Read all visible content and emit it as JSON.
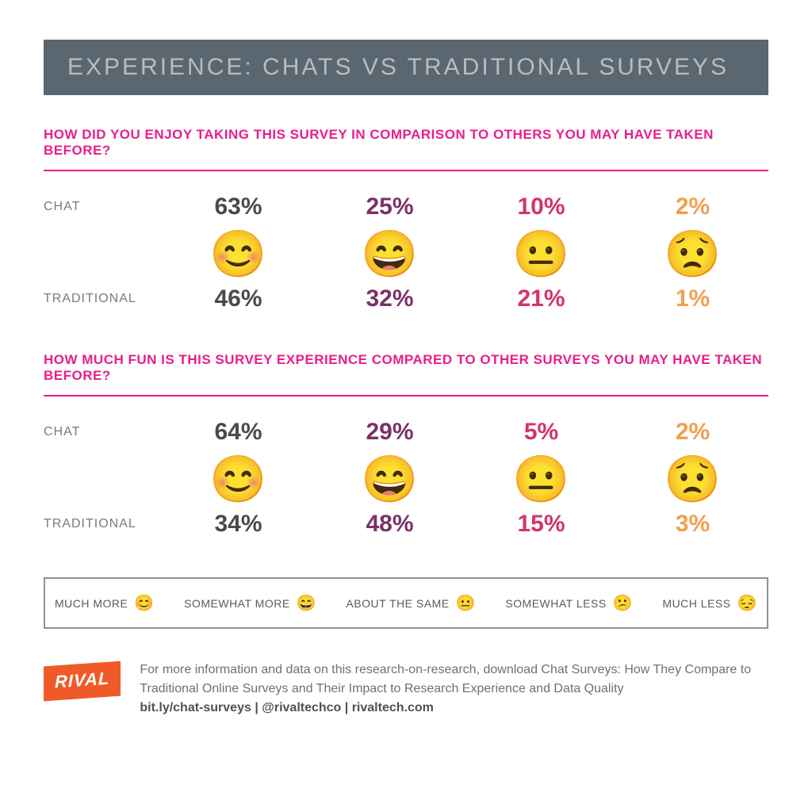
{
  "title": "EXPERIENCE: CHATS VS TRADITIONAL SURVEYS",
  "colors": {
    "title_bg": "#5a6670",
    "title_text": "#b8bcbf",
    "accent": "#e91e8c",
    "col1": "#4a4a4a",
    "col2": "#7a3068",
    "col3": "#d4336d",
    "col4": "#f0a050",
    "row_label": "#7a7a7a",
    "legend_border": "#8a9299",
    "logo_bg": "#f05a28",
    "footer_text": "#6a7278"
  },
  "typography": {
    "title_fontsize": 30,
    "question_fontsize": 17,
    "pct_fontsize": 30,
    "emoji_fontsize": 58,
    "legend_fontsize": 14,
    "footer_fontsize": 16
  },
  "row_labels": {
    "chat": "CHAT",
    "traditional": "TRADITIONAL"
  },
  "sections": [
    {
      "question": "HOW DID YOU ENJOY TAKING THIS SURVEY IN COMPARISON TO OTHERS YOU MAY HAVE TAKEN BEFORE?",
      "emojis": [
        "😊",
        "😄",
        "😐",
        "😟"
      ],
      "chat": [
        "63%",
        "25%",
        "10%",
        "2%"
      ],
      "traditional": [
        "46%",
        "32%",
        "21%",
        "1%"
      ]
    },
    {
      "question": "HOW MUCH FUN IS THIS SURVEY EXPERIENCE COMPARED TO OTHER SURVEYS YOU MAY HAVE TAKEN BEFORE?",
      "emojis": [
        "😊",
        "😄",
        "😐",
        "😟"
      ],
      "chat": [
        "64%",
        "29%",
        "5%",
        "2%"
      ],
      "traditional": [
        "34%",
        "48%",
        "15%",
        "3%"
      ]
    }
  ],
  "legend": [
    {
      "label": "MUCH MORE",
      "emoji": "😊"
    },
    {
      "label": "SOMEWHAT MORE",
      "emoji": "😄"
    },
    {
      "label": "ABOUT THE SAME",
      "emoji": "😐"
    },
    {
      "label": "SOMEWHAT LESS",
      "emoji": "😕"
    },
    {
      "label": "MUCH LESS",
      "emoji": "😔"
    }
  ],
  "footer": {
    "logo": "RIVAL",
    "text": "For more information and data on this research-on-research, download Chat Surveys: How They Compare to Traditional Online Surveys and Their Impact to Research Experience and Data Quality",
    "links": "bit.ly/chat-surveys  |  @rivaltechco  |  rivaltech.com"
  }
}
